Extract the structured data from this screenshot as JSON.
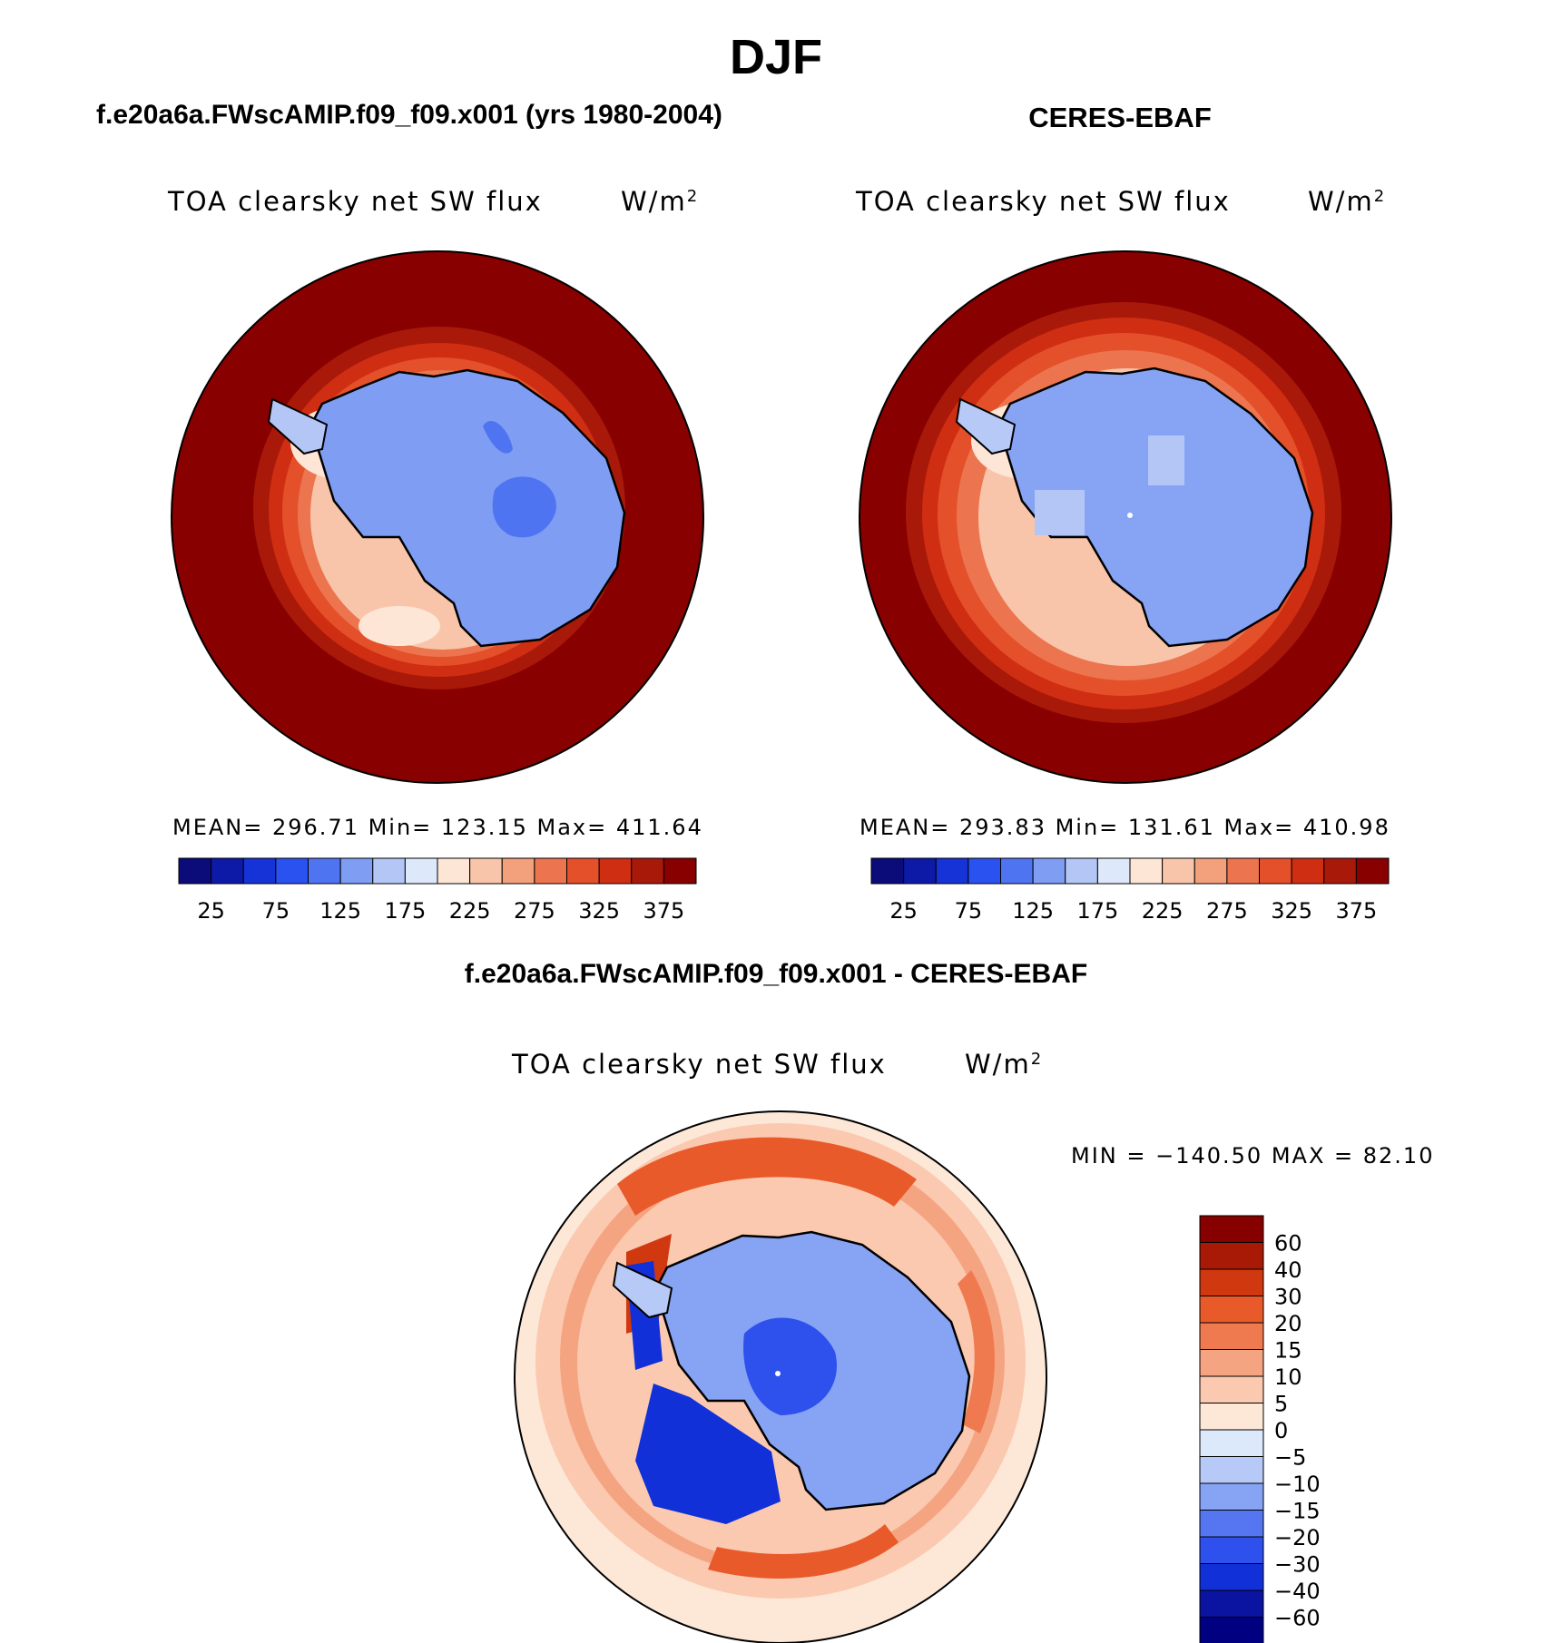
{
  "page": {
    "season_title": "DJF",
    "model_title": "f.e20a6a.FWscAMIP.f09_f09.x001 (yrs 1980-2004)",
    "obs_title": "CERES-EBAF",
    "diff_title": "f.e20a6a.FWscAMIP.f09_f09.x001 - CERES-EBAF"
  },
  "panels": {
    "model": {
      "var_label": "TOA clearsky net SW flux",
      "units_base": "W/m",
      "units_exp": "2",
      "stats": "MEAN= 296.71   Min= 123.15   Max= 411.64"
    },
    "obs": {
      "var_label": "TOA clearsky net SW flux",
      "units_base": "W/m",
      "units_exp": "2",
      "stats": "MEAN= 293.83   Min= 131.61   Max= 410.98"
    },
    "diff": {
      "var_label": "TOA clearsky net SW flux",
      "units_base": "W/m",
      "units_exp": "2",
      "stats": "MIN = −140.50 MAX =  82.10"
    }
  },
  "colors": {
    "abs_scale": [
      "#0b0b7a",
      "#0d1aa8",
      "#1533d6",
      "#2a52f0",
      "#4f74f2",
      "#7f9df3",
      "#b3c6f6",
      "#dde8fb",
      "#fde6d6",
      "#f9c5aa",
      "#f3a07c",
      "#ec7550",
      "#e4502a",
      "#cf2e12",
      "#a8190a",
      "#880000"
    ],
    "diff_scale": [
      "#000080",
      "#0a14a0",
      "#1230d8",
      "#2e50ec",
      "#5576f0",
      "#86a3f4",
      "#b6c9f7",
      "#dce9fb",
      "#fde8d8",
      "#fbc9b0",
      "#f5a482",
      "#f07a50",
      "#e85a2a",
      "#d0380f",
      "#a81a06",
      "#860000"
    ],
    "coastline": "#000000"
  },
  "chart_data": [
    {
      "type": "heatmap",
      "projection": "south-polar-stereographic",
      "title": "f.e20a6a.FWscAMIP.f09_f09.x001 (yrs 1980-2004)",
      "variable": "TOA clearsky net SW flux",
      "units": "W/m^2",
      "mean": 296.71,
      "min": 123.15,
      "max": 411.64,
      "contour_levels": [
        25,
        50,
        75,
        100,
        125,
        150,
        175,
        200,
        225,
        250,
        275,
        300,
        325,
        350,
        375
      ],
      "colorbar_tick_labels": [
        "25",
        "75",
        "125",
        "175",
        "225",
        "275",
        "325",
        "375"
      ]
    },
    {
      "type": "heatmap",
      "projection": "south-polar-stereographic",
      "title": "CERES-EBAF",
      "variable": "TOA clearsky net SW flux",
      "units": "W/m^2",
      "mean": 293.83,
      "min": 131.61,
      "max": 410.98,
      "contour_levels": [
        25,
        50,
        75,
        100,
        125,
        150,
        175,
        200,
        225,
        250,
        275,
        300,
        325,
        350,
        375
      ],
      "colorbar_tick_labels": [
        "25",
        "75",
        "125",
        "175",
        "225",
        "275",
        "325",
        "375"
      ]
    },
    {
      "type": "heatmap",
      "projection": "south-polar-stereographic",
      "title": "f.e20a6a.FWscAMIP.f09_f09.x001 - CERES-EBAF",
      "variable": "TOA clearsky net SW flux",
      "units": "W/m^2",
      "min": -140.5,
      "max": 82.1,
      "contour_levels": [
        -60,
        -40,
        -30,
        -20,
        -15,
        -10,
        -5,
        0,
        5,
        10,
        15,
        20,
        30,
        40,
        60
      ],
      "colorbar_tick_labels": [
        "60",
        "40",
        "30",
        "20",
        "15",
        "10",
        "5",
        "0",
        "−5",
        "−10",
        "−15",
        "−20",
        "−30",
        "−40",
        "−60"
      ]
    }
  ]
}
